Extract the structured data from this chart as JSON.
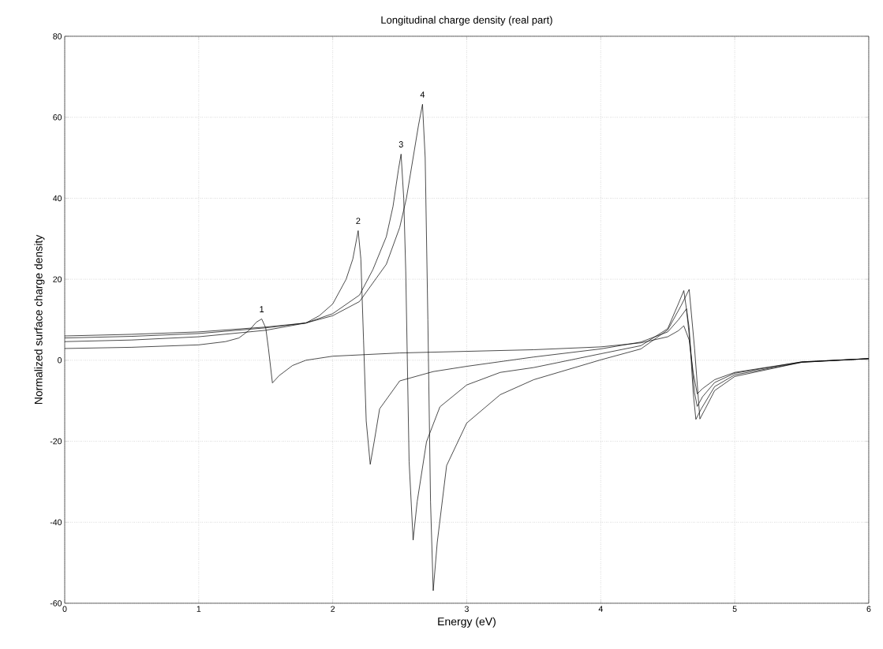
{
  "chart_data": {
    "type": "line",
    "title": "Longitudinal charge density (real part)",
    "xlabel": "Energy (eV)",
    "ylabel": "Normalized surface charge density",
    "xlim": [
      0,
      6
    ],
    "ylim": [
      -60,
      80
    ],
    "xticks": [
      0,
      1,
      2,
      3,
      4,
      5,
      6
    ],
    "yticks": [
      -60,
      -40,
      -20,
      0,
      20,
      40,
      60,
      80
    ],
    "grid": true,
    "series": [
      {
        "color": "#000000",
        "x": [
          0,
          0.5,
          1.0,
          1.2,
          1.3,
          1.38,
          1.43,
          1.47,
          1.5,
          1.52,
          1.55,
          1.6,
          1.7,
          1.8,
          2.0,
          2.5,
          3.0,
          3.5,
          4.0,
          4.3,
          4.5,
          4.58,
          4.62,
          4.66,
          4.69,
          4.72,
          4.76,
          4.85,
          5.0,
          5.5,
          6.0
        ],
        "values": [
          2.9,
          3.2,
          3.8,
          4.6,
          5.5,
          7.5,
          9.4,
          10.2,
          8,
          3,
          -5.6,
          -3.8,
          -1.3,
          0,
          1.0,
          1.8,
          2.2,
          2.6,
          3.3,
          4.3,
          5.8,
          7.3,
          8.5,
          5,
          -3,
          -8.3,
          -7,
          -4.8,
          -3.0,
          -0.4,
          0.4
        ]
      },
      {
        "color": "#000000",
        "x": [
          0,
          0.5,
          1.0,
          1.5,
          1.8,
          1.9,
          2.0,
          2.1,
          2.15,
          2.19,
          2.21,
          2.23,
          2.25,
          2.28,
          2.31,
          2.35,
          2.5,
          2.75,
          3.0,
          3.5,
          4.0,
          4.3,
          4.5,
          4.58,
          4.64,
          4.67,
          4.7,
          4.72,
          4.76,
          4.85,
          5.0,
          5.5,
          6.0
        ],
        "values": [
          4.6,
          5.0,
          5.8,
          7.4,
          9.2,
          11,
          13.9,
          20,
          25,
          32,
          25,
          5,
          -15,
          -25.7,
          -20,
          -12,
          -5.1,
          -2.8,
          -1.5,
          0.8,
          2.8,
          4.5,
          7,
          10,
          12.7,
          3,
          -8,
          -11.4,
          -9,
          -5.5,
          -3.2,
          -0.4,
          0.4
        ]
      },
      {
        "color": "#000000",
        "x": [
          0,
          0.5,
          1.0,
          1.5,
          1.8,
          2.0,
          2.2,
          2.3,
          2.4,
          2.45,
          2.49,
          2.51,
          2.53,
          2.545,
          2.57,
          2.6,
          2.63,
          2.7,
          2.8,
          3.0,
          3.25,
          3.5,
          4.0,
          4.3,
          4.5,
          4.58,
          4.62,
          4.66,
          4.69,
          4.71,
          4.75,
          4.85,
          5.0,
          5.5,
          6.0
        ],
        "values": [
          5.5,
          5.9,
          6.6,
          8.0,
          9.2,
          11.5,
          16.1,
          22.4,
          30.5,
          38,
          47,
          50.9,
          40,
          22,
          -25,
          -44.4,
          -35,
          -20.1,
          -11.5,
          -6.1,
          -3,
          -1.8,
          1.6,
          3.6,
          7.8,
          14,
          17.2,
          8,
          -8,
          -14.6,
          -12,
          -6.5,
          -3.6,
          -0.5,
          0.4
        ]
      },
      {
        "color": "#000000",
        "x": [
          0,
          0.5,
          1.0,
          1.5,
          1.8,
          2.0,
          2.2,
          2.4,
          2.5,
          2.55,
          2.6,
          2.64,
          2.67,
          2.69,
          2.71,
          2.73,
          2.75,
          2.78,
          2.85,
          3.0,
          3.25,
          3.5,
          4.0,
          4.3,
          4.5,
          4.6,
          4.66,
          4.7,
          4.74,
          4.78,
          4.85,
          5.0,
          5.5,
          6.0
        ],
        "values": [
          6.0,
          6.4,
          7.0,
          8.2,
          9.2,
          11,
          14.5,
          23.7,
          32.8,
          40,
          50,
          58,
          63.2,
          50,
          10,
          -35,
          -56.9,
          -45,
          -26,
          -15.5,
          -8.5,
          -4.8,
          0.1,
          2.8,
          7.5,
          13.5,
          17.5,
          3,
          -14.5,
          -12,
          -7.5,
          -4,
          -0.5,
          0.4
        ]
      }
    ],
    "annotations": [
      {
        "text": "1",
        "x": 1.47,
        "y": 10.2
      },
      {
        "text": "2",
        "x": 2.19,
        "y": 32
      },
      {
        "text": "3",
        "x": 2.51,
        "y": 50.9
      },
      {
        "text": "4",
        "x": 2.67,
        "y": 63.2
      }
    ]
  }
}
